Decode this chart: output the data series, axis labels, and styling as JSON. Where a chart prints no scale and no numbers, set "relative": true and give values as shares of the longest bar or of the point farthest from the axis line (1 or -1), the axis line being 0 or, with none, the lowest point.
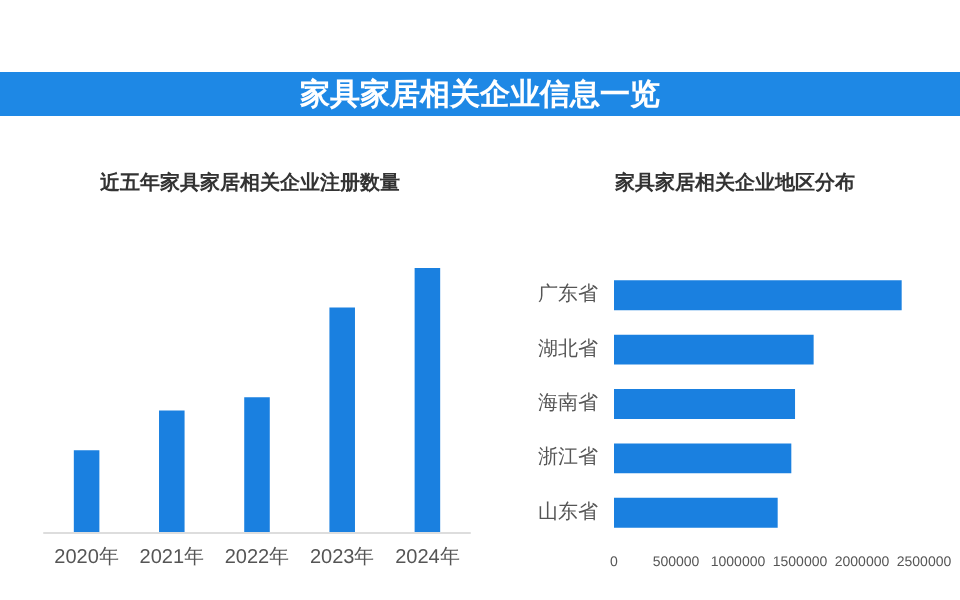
{
  "chart_data": [
    {
      "type": "bar",
      "title": "家具家居相关企业信息一览",
      "subtitle": "近五年家具家居相关企业注册数量",
      "categories": [
        "2020年",
        "2021年",
        "2022年",
        "2023年",
        "2024年"
      ],
      "values": [
        0.31,
        0.46,
        0.51,
        0.85,
        1
      ],
      "color": "#1a80e0",
      "relative": true
    },
    {
      "type": "bar",
      "orientation": "horizontal",
      "title": "家具家居相关企业地区分布",
      "categories": [
        "广东省",
        "湖北省",
        "海南省",
        "浙江省",
        "山东省"
      ],
      "values": [
        2320000,
        1610000,
        1460000,
        1430000,
        1320000
      ],
      "color": "#1a80e0",
      "xlim": [
        0,
        2500000
      ],
      "xticks": [
        0,
        500000,
        1000000,
        1500000,
        2000000,
        2500000
      ]
    }
  ]
}
